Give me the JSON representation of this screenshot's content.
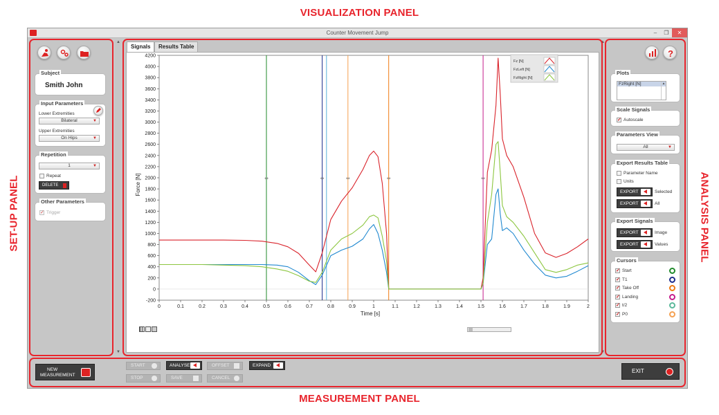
{
  "labels": {
    "visualization": "VISUALIZATION PANEL",
    "setup": "SET-UP PANEL",
    "analysis": "ANALYSIS PANEL",
    "measurement": "MEASUREMENT PANEL"
  },
  "window": {
    "title": "Counter Movement Jump"
  },
  "setup": {
    "subject": {
      "title": "Subject",
      "name": "Smith John"
    },
    "input_parameters": {
      "title": "Input Parameters",
      "lower_label": "Lower Extremities",
      "lower_value": "Bilateral",
      "upper_label": "Upper Extremities",
      "upper_value": "On Hips"
    },
    "repetition": {
      "title": "Repetition",
      "value": "1",
      "repeat_label": "Repeat",
      "delete_label": "DELETE"
    },
    "other": {
      "title": "Other Parameters",
      "trigger_label": "Trigger"
    }
  },
  "tabs": [
    {
      "label": "Signals",
      "active": true
    },
    {
      "label": "Results Table",
      "active": false
    }
  ],
  "chart_data": {
    "type": "line",
    "xlabel": "Time [s]",
    "ylabel": "Force [N]",
    "xlim": [
      0,
      2
    ],
    "ylim": [
      -200,
      4200
    ],
    "x_ticks": [
      "0",
      "0.1",
      "0.2",
      "0.3",
      "0.4",
      "0.5",
      "0.6",
      "0.7",
      "0.8",
      "0.9",
      "1",
      "1.1",
      "1.2",
      "1.3",
      "1.4",
      "1.5",
      "1.6",
      "1.7",
      "1.8",
      "1.9",
      "2"
    ],
    "y_ticks": [
      "-200",
      "0",
      "200",
      "400",
      "600",
      "800",
      "1000",
      "1200",
      "1400",
      "1600",
      "1800",
      "2000",
      "2200",
      "2400",
      "2600",
      "2800",
      "3000",
      "3200",
      "3400",
      "3600",
      "3800",
      "4000",
      "4200"
    ],
    "legend_position": "top-right",
    "series": [
      {
        "name": "Fz [N]",
        "color": "#d9222a",
        "points": [
          [
            0,
            880
          ],
          [
            0.1,
            880
          ],
          [
            0.2,
            880
          ],
          [
            0.3,
            880
          ],
          [
            0.4,
            875
          ],
          [
            0.48,
            860
          ],
          [
            0.55,
            820
          ],
          [
            0.6,
            760
          ],
          [
            0.65,
            640
          ],
          [
            0.7,
            430
          ],
          [
            0.73,
            310
          ],
          [
            0.76,
            650
          ],
          [
            0.8,
            1250
          ],
          [
            0.85,
            1580
          ],
          [
            0.9,
            1820
          ],
          [
            0.95,
            2150
          ],
          [
            0.98,
            2400
          ],
          [
            1.0,
            2480
          ],
          [
            1.02,
            2380
          ],
          [
            1.04,
            1900
          ],
          [
            1.06,
            1000
          ],
          [
            1.07,
            0
          ],
          [
            1.1,
            0
          ],
          [
            1.3,
            0
          ],
          [
            1.5,
            0
          ],
          [
            1.51,
            200
          ],
          [
            1.53,
            2100
          ],
          [
            1.55,
            2500
          ],
          [
            1.57,
            3300
          ],
          [
            1.58,
            4150
          ],
          [
            1.59,
            3500
          ],
          [
            1.6,
            2700
          ],
          [
            1.62,
            2400
          ],
          [
            1.65,
            2200
          ],
          [
            1.7,
            1650
          ],
          [
            1.75,
            1000
          ],
          [
            1.8,
            650
          ],
          [
            1.85,
            570
          ],
          [
            1.9,
            640
          ],
          [
            1.95,
            760
          ],
          [
            2.0,
            900
          ]
        ]
      },
      {
        "name": "FzLeft [N]",
        "color": "#1f88d0",
        "points": [
          [
            0,
            440
          ],
          [
            0.1,
            440
          ],
          [
            0.2,
            440
          ],
          [
            0.3,
            440
          ],
          [
            0.4,
            440
          ],
          [
            0.48,
            440
          ],
          [
            0.55,
            430
          ],
          [
            0.6,
            400
          ],
          [
            0.65,
            300
          ],
          [
            0.7,
            150
          ],
          [
            0.73,
            80
          ],
          [
            0.76,
            250
          ],
          [
            0.8,
            600
          ],
          [
            0.85,
            700
          ],
          [
            0.9,
            770
          ],
          [
            0.95,
            900
          ],
          [
            0.98,
            1080
          ],
          [
            1.0,
            1160
          ],
          [
            1.02,
            1000
          ],
          [
            1.04,
            700
          ],
          [
            1.06,
            300
          ],
          [
            1.07,
            0
          ],
          [
            1.1,
            0
          ],
          [
            1.3,
            0
          ],
          [
            1.5,
            0
          ],
          [
            1.51,
            100
          ],
          [
            1.53,
            800
          ],
          [
            1.55,
            900
          ],
          [
            1.57,
            1700
          ],
          [
            1.58,
            1800
          ],
          [
            1.59,
            1350
          ],
          [
            1.6,
            1050
          ],
          [
            1.62,
            1100
          ],
          [
            1.65,
            1000
          ],
          [
            1.7,
            700
          ],
          [
            1.75,
            450
          ],
          [
            1.8,
            250
          ],
          [
            1.85,
            200
          ],
          [
            1.9,
            230
          ],
          [
            1.95,
            320
          ],
          [
            2.0,
            420
          ]
        ]
      },
      {
        "name": "FzRight [N]",
        "color": "#8cc63f",
        "points": [
          [
            0,
            440
          ],
          [
            0.1,
            440
          ],
          [
            0.2,
            440
          ],
          [
            0.3,
            430
          ],
          [
            0.4,
            420
          ],
          [
            0.48,
            400
          ],
          [
            0.55,
            360
          ],
          [
            0.6,
            320
          ],
          [
            0.65,
            240
          ],
          [
            0.7,
            140
          ],
          [
            0.73,
            120
          ],
          [
            0.76,
            300
          ],
          [
            0.8,
            700
          ],
          [
            0.85,
            900
          ],
          [
            0.9,
            1000
          ],
          [
            0.95,
            1150
          ],
          [
            0.98,
            1300
          ],
          [
            1.0,
            1330
          ],
          [
            1.02,
            1280
          ],
          [
            1.04,
            950
          ],
          [
            1.06,
            500
          ],
          [
            1.07,
            0
          ],
          [
            1.1,
            0
          ],
          [
            1.3,
            0
          ],
          [
            1.5,
            0
          ],
          [
            1.51,
            100
          ],
          [
            1.53,
            1200
          ],
          [
            1.55,
            1700
          ],
          [
            1.57,
            2600
          ],
          [
            1.58,
            2650
          ],
          [
            1.59,
            2100
          ],
          [
            1.6,
            1500
          ],
          [
            1.62,
            1300
          ],
          [
            1.65,
            1200
          ],
          [
            1.7,
            950
          ],
          [
            1.75,
            650
          ],
          [
            1.8,
            350
          ],
          [
            1.85,
            300
          ],
          [
            1.9,
            350
          ],
          [
            1.95,
            430
          ],
          [
            2.0,
            470
          ]
        ]
      }
    ],
    "cursor_lines": [
      {
        "x": 0.5,
        "color": "#1f8a2a"
      },
      {
        "x": 0.76,
        "color": "#1c2a8a"
      },
      {
        "x": 0.78,
        "color": "#5ab0d8"
      },
      {
        "x": 0.88,
        "color": "#f5a050"
      },
      {
        "x": 1.07,
        "color": "#f07a10"
      },
      {
        "x": 1.51,
        "color": "#c51a8a"
      }
    ]
  },
  "analysis": {
    "plots": {
      "title": "Plots",
      "item": "FzRight [N]"
    },
    "scale": {
      "title": "Scale Signals",
      "autoscale_label": "Autoscale"
    },
    "params_view": {
      "title": "Parameters View",
      "value": "All"
    },
    "export_results": {
      "title": "Export Results Table",
      "param_name_label": "Parameter Name",
      "units_label": "Units",
      "export_label": "EXPORT",
      "selected_label": "Selected",
      "all_label": "All"
    },
    "export_signals": {
      "title": "Export Signals",
      "export_label": "EXPORT",
      "image_label": "Image",
      "values_label": "Values"
    },
    "cursors": {
      "title": "Cursors",
      "items": [
        {
          "label": "Start",
          "color": "#1f8a2a"
        },
        {
          "label": "T1",
          "color": "#1c2a8a"
        },
        {
          "label": "Take Off",
          "color": "#f07a10"
        },
        {
          "label": "Landing",
          "color": "#c51a8a"
        },
        {
          "label": "t/2",
          "color": "#5ab89a"
        },
        {
          "label": "P0",
          "color": "#f5a050"
        }
      ]
    }
  },
  "measurement": {
    "new_label_1": "NEW",
    "new_label_2": "MEASUREMENT",
    "start": "START",
    "stop": "STOP",
    "analyse": "ANALYSE",
    "save": "SAVE",
    "offset": "OFFSET",
    "cancel": "CANCEL",
    "expand": "EXPAND",
    "exit": "EXIT"
  }
}
